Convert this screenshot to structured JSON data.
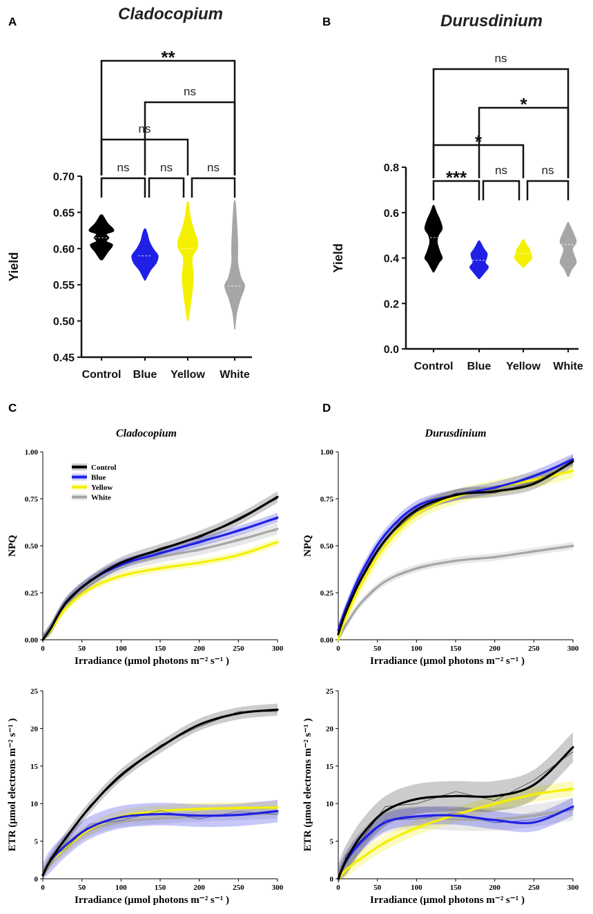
{
  "panel_letters": {
    "A": "A",
    "B": "B",
    "C": "C",
    "D": "D"
  },
  "colors": {
    "Control": "#000000",
    "Blue": "#1f1fe6",
    "Yellow": "#f5f000",
    "White": "#a6a6a6"
  },
  "chart_data": [
    {
      "panel": "A",
      "type": "violin",
      "title": "Cladocopium",
      "ylabel": "Yield",
      "ylim": [
        0.45,
        0.7
      ],
      "yticks": [
        "0.45",
        "0.50",
        "0.55",
        "0.60",
        "0.65",
        "0.70"
      ],
      "categories": [
        "Control",
        "Blue",
        "Yellow",
        "White"
      ],
      "violins": [
        {
          "name": "Control",
          "median": 0.615,
          "min": 0.585,
          "max": 0.646,
          "profile": [
            [
              0.585,
              0.2
            ],
            [
              0.595,
              1.0
            ],
            [
              0.605,
              1.8
            ],
            [
              0.61,
              0.8
            ],
            [
              0.615,
              1.2
            ],
            [
              0.62,
              0.8
            ],
            [
              0.625,
              2.0
            ],
            [
              0.635,
              1.0
            ],
            [
              0.646,
              0.2
            ]
          ]
        },
        {
          "name": "Blue",
          "median": 0.59,
          "min": 0.557,
          "max": 0.627,
          "profile": [
            [
              0.557,
              0.1
            ],
            [
              0.57,
              0.9
            ],
            [
              0.58,
              1.8
            ],
            [
              0.59,
              2.1
            ],
            [
              0.6,
              1.3
            ],
            [
              0.61,
              0.7
            ],
            [
              0.62,
              0.4
            ],
            [
              0.627,
              0.1
            ]
          ]
        },
        {
          "name": "Yellow",
          "median": 0.6,
          "min": 0.502,
          "max": 0.664,
          "profile": [
            [
              0.502,
              0.1
            ],
            [
              0.52,
              0.4
            ],
            [
              0.54,
              0.7
            ],
            [
              0.56,
              0.9
            ],
            [
              0.58,
              0.7
            ],
            [
              0.59,
              0.8
            ],
            [
              0.6,
              1.5
            ],
            [
              0.61,
              1.6
            ],
            [
              0.625,
              1.0
            ],
            [
              0.64,
              0.5
            ],
            [
              0.655,
              0.25
            ],
            [
              0.664,
              0.1
            ]
          ]
        },
        {
          "name": "White",
          "median": 0.548,
          "min": 0.49,
          "max": 0.666,
          "profile": [
            [
              0.49,
              0.05
            ],
            [
              0.51,
              0.3
            ],
            [
              0.53,
              0.9
            ],
            [
              0.548,
              1.6
            ],
            [
              0.56,
              1.0
            ],
            [
              0.58,
              0.5
            ],
            [
              0.6,
              0.5
            ],
            [
              0.615,
              0.45
            ],
            [
              0.64,
              0.3
            ],
            [
              0.66,
              0.15
            ],
            [
              0.666,
              0.05
            ]
          ]
        }
      ],
      "comparisons": [
        {
          "from": "Control",
          "to": "Blue",
          "label": "ns"
        },
        {
          "from": "Blue",
          "to": "Yellow",
          "label": "ns"
        },
        {
          "from": "Yellow",
          "to": "White",
          "label": "ns"
        },
        {
          "from": "Control",
          "to": "Yellow",
          "label": "ns"
        },
        {
          "from": "Blue",
          "to": "White",
          "label": "ns"
        },
        {
          "from": "Control",
          "to": "White",
          "label": "**"
        }
      ]
    },
    {
      "panel": "B",
      "type": "violin",
      "title": "Durusdinium",
      "ylabel": "Yield",
      "ylim": [
        0.0,
        0.8
      ],
      "yticks": [
        "0.0",
        "0.2",
        "0.4",
        "0.6",
        "0.8"
      ],
      "categories": [
        "Control",
        "Blue",
        "Yellow",
        "White"
      ],
      "violins": [
        {
          "name": "Control",
          "median": 0.49,
          "min": 0.34,
          "max": 0.63,
          "profile": [
            [
              0.34,
              0.1
            ],
            [
              0.38,
              0.9
            ],
            [
              0.4,
              1.4
            ],
            [
              0.43,
              1.0
            ],
            [
              0.47,
              0.6
            ],
            [
              0.5,
              0.8
            ],
            [
              0.53,
              1.4
            ],
            [
              0.57,
              1.0
            ],
            [
              0.6,
              0.5
            ],
            [
              0.63,
              0.1
            ]
          ]
        },
        {
          "name": "Blue",
          "median": 0.39,
          "min": 0.31,
          "max": 0.475,
          "profile": [
            [
              0.31,
              0.1
            ],
            [
              0.34,
              1.0
            ],
            [
              0.36,
              1.5
            ],
            [
              0.38,
              1.0
            ],
            [
              0.4,
              1.2
            ],
            [
              0.42,
              1.3
            ],
            [
              0.44,
              0.8
            ],
            [
              0.46,
              0.4
            ],
            [
              0.475,
              0.1
            ]
          ]
        },
        {
          "name": "Yellow",
          "median": 0.42,
          "min": 0.36,
          "max": 0.48,
          "profile": [
            [
              0.36,
              0.1
            ],
            [
              0.38,
              0.8
            ],
            [
              0.4,
              1.4
            ],
            [
              0.42,
              1.2
            ],
            [
              0.44,
              1.0
            ],
            [
              0.46,
              0.5
            ],
            [
              0.48,
              0.1
            ]
          ]
        },
        {
          "name": "White",
          "median": 0.46,
          "min": 0.32,
          "max": 0.555,
          "profile": [
            [
              0.32,
              0.1
            ],
            [
              0.35,
              0.6
            ],
            [
              0.38,
              1.3
            ],
            [
              0.41,
              1.0
            ],
            [
              0.44,
              0.7
            ],
            [
              0.47,
              1.3
            ],
            [
              0.5,
              1.0
            ],
            [
              0.53,
              0.5
            ],
            [
              0.555,
              0.1
            ]
          ]
        }
      ],
      "comparisons": [
        {
          "from": "Control",
          "to": "Blue",
          "label": "***"
        },
        {
          "from": "Blue",
          "to": "Yellow",
          "label": "ns"
        },
        {
          "from": "Yellow",
          "to": "White",
          "label": "ns"
        },
        {
          "from": "Control",
          "to": "Yellow",
          "label": "*"
        },
        {
          "from": "Blue",
          "to": "White",
          "label": "*"
        },
        {
          "from": "Control",
          "to": "White",
          "label": "ns"
        }
      ]
    },
    {
      "panel": "C",
      "type": "line",
      "title": "Cladocopium",
      "ylabel": "NPQ",
      "xlabel": "Irradiance (µmol photons   m⁻² s⁻¹ )",
      "xlim": [
        0,
        300
      ],
      "ylim": [
        0,
        1
      ],
      "xticks": [
        "0",
        "50",
        "100",
        "150",
        "200",
        "250",
        "300"
      ],
      "yticks": [
        "0.00",
        "0.25",
        "0.50",
        "0.75",
        "1.00"
      ],
      "legend": [
        "Control",
        "Blue",
        "Yellow",
        "White"
      ],
      "legend_position": "top-left",
      "series": [
        {
          "name": "Control",
          "x": [
            0,
            10,
            30,
            60,
            100,
            150,
            200,
            250,
            300
          ],
          "y": [
            0.0,
            0.06,
            0.2,
            0.31,
            0.41,
            0.48,
            0.55,
            0.64,
            0.76
          ],
          "band": 0.03
        },
        {
          "name": "Blue",
          "x": [
            0,
            10,
            30,
            60,
            100,
            150,
            200,
            250,
            300
          ],
          "y": [
            0.0,
            0.06,
            0.2,
            0.31,
            0.4,
            0.46,
            0.52,
            0.58,
            0.65
          ],
          "band": 0.025
        },
        {
          "name": "Yellow",
          "x": [
            0,
            10,
            30,
            60,
            100,
            150,
            200,
            250,
            300
          ],
          "y": [
            0.0,
            0.05,
            0.17,
            0.27,
            0.34,
            0.38,
            0.41,
            0.45,
            0.52
          ],
          "band": 0.02
        },
        {
          "name": "White",
          "x": [
            0,
            10,
            30,
            60,
            100,
            150,
            200,
            250,
            300
          ],
          "y": [
            0.0,
            0.06,
            0.19,
            0.3,
            0.39,
            0.44,
            0.48,
            0.53,
            0.59
          ],
          "band": 0.03
        }
      ]
    },
    {
      "panel": "D",
      "type": "line",
      "title": "Durusdinium",
      "ylabel": "NPQ",
      "xlabel": "Irradiance (µmol photons   m⁻² s⁻¹ )",
      "xlim": [
        0,
        300
      ],
      "ylim": [
        0,
        1
      ],
      "xticks": [
        "0",
        "50",
        "100",
        "150",
        "200",
        "250",
        "300"
      ],
      "yticks": [
        "0.00",
        "0.25",
        "0.50",
        "0.75",
        "1.00"
      ],
      "series": [
        {
          "name": "Control",
          "x": [
            0,
            10,
            30,
            60,
            100,
            150,
            200,
            250,
            300
          ],
          "y": [
            0.03,
            0.15,
            0.33,
            0.53,
            0.69,
            0.77,
            0.79,
            0.83,
            0.95
          ],
          "band": 0.03
        },
        {
          "name": "Blue",
          "x": [
            0,
            10,
            30,
            60,
            100,
            150,
            200,
            250,
            300
          ],
          "y": [
            0.05,
            0.17,
            0.36,
            0.56,
            0.71,
            0.77,
            0.81,
            0.87,
            0.96
          ],
          "band": 0.03
        },
        {
          "name": "Yellow",
          "x": [
            0,
            10,
            30,
            60,
            100,
            150,
            200,
            250,
            300
          ],
          "y": [
            0.0,
            0.12,
            0.3,
            0.5,
            0.67,
            0.76,
            0.81,
            0.85,
            0.9
          ],
          "band": 0.04
        },
        {
          "name": "White",
          "x": [
            0,
            10,
            30,
            60,
            100,
            150,
            200,
            250,
            300
          ],
          "y": [
            0.0,
            0.08,
            0.2,
            0.31,
            0.38,
            0.42,
            0.44,
            0.47,
            0.5
          ],
          "band": 0.02
        }
      ]
    },
    {
      "panel": "C",
      "type": "line",
      "ylabel": "ETR (µmol electrons   m⁻² s⁻¹ )",
      "xlabel": "Irradiance (µmol photons   m⁻² s⁻¹ )",
      "xlim": [
        0,
        300
      ],
      "ylim": [
        0,
        25
      ],
      "xticks": [
        "0",
        "50",
        "100",
        "150",
        "200",
        "250",
        "300"
      ],
      "yticks": [
        "0",
        "5",
        "10",
        "15",
        "20",
        "25"
      ],
      "series": [
        {
          "name": "Control",
          "x": [
            0,
            10,
            30,
            60,
            100,
            150,
            200,
            250,
            300
          ],
          "y": [
            0.5,
            2.5,
            5.5,
            9.5,
            13.8,
            17.5,
            20.5,
            22.0,
            22.5
          ],
          "band": 0.8
        },
        {
          "name": "Blue",
          "x": [
            0,
            10,
            30,
            60,
            100,
            150,
            200,
            250,
            300
          ],
          "y": [
            0.5,
            2.4,
            4.5,
            6.8,
            8.2,
            8.6,
            8.4,
            8.5,
            9.0
          ],
          "band": 1.5
        },
        {
          "name": "Yellow",
          "x": [
            0,
            10,
            30,
            60,
            100,
            150,
            200,
            250,
            300
          ],
          "y": [
            0.5,
            2.3,
            4.2,
            6.6,
            8.3,
            9.0,
            9.3,
            9.4,
            9.5
          ],
          "band": 0.8
        },
        {
          "name": "White",
          "x": [
            0,
            10,
            30,
            60,
            100,
            150,
            200,
            250,
            300
          ],
          "y": [
            0.5,
            2.3,
            4.3,
            6.4,
            7.6,
            8.0,
            8.3,
            8.5,
            8.7
          ],
          "band": 0.7
        }
      ]
    },
    {
      "panel": "D",
      "type": "line",
      "ylabel": "ETR (µmol electrons   m⁻² s⁻¹ )",
      "xlabel": "Irradiance (µmol photons   m⁻² s⁻¹ )",
      "xlim": [
        0,
        300
      ],
      "ylim": [
        0,
        25
      ],
      "xticks": [
        "0",
        "50",
        "100",
        "150",
        "200",
        "250",
        "300"
      ],
      "yticks": [
        "0",
        "5",
        "10",
        "15",
        "20",
        "25"
      ],
      "series": [
        {
          "name": "Control",
          "x": [
            0,
            10,
            30,
            60,
            100,
            150,
            200,
            250,
            300
          ],
          "y": [
            0.0,
            2.5,
            5.8,
            9.0,
            10.6,
            11.0,
            11.0,
            12.5,
            17.5
          ],
          "band": 2.0
        },
        {
          "name": "Blue",
          "x": [
            0,
            10,
            30,
            60,
            100,
            150,
            200,
            250,
            300
          ],
          "y": [
            0.0,
            2.3,
            5.0,
            7.5,
            8.3,
            8.4,
            7.8,
            7.5,
            9.6
          ],
          "band": 1.2
        },
        {
          "name": "Yellow",
          "x": [
            0,
            10,
            30,
            60,
            100,
            150,
            200,
            250,
            300
          ],
          "y": [
            0.0,
            1.2,
            2.8,
            4.8,
            6.8,
            8.5,
            10.0,
            11.2,
            12.0
          ],
          "band": 1.0
        },
        {
          "name": "White",
          "x": [
            0,
            10,
            30,
            60,
            100,
            150,
            200,
            250,
            300
          ],
          "y": [
            0.0,
            2.2,
            5.0,
            7.5,
            8.1,
            7.9,
            7.9,
            8.4,
            9.3
          ],
          "band": 1.5
        }
      ]
    }
  ]
}
